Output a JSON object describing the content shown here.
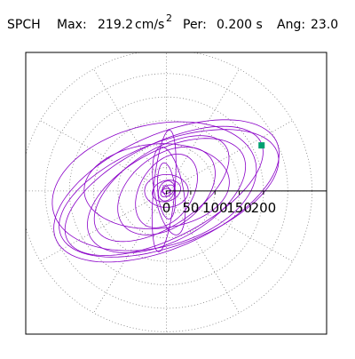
{
  "header": {
    "station": "SPCH",
    "max_label": "Max:",
    "max_value": "219.2",
    "max_unit_base": "cm/s",
    "max_unit_exp": "2",
    "per_label": "Per:",
    "per_value": "0.200 s",
    "ang_label": "Ang:",
    "ang_value": "23.0"
  },
  "colors": {
    "trace": "#8a00c8",
    "marker": "#00a070",
    "grid": "#808080",
    "axis": "#000000",
    "frame": "#000000"
  },
  "chart_data": {
    "type": "scatter",
    "title": "",
    "xlabel": "",
    "ylabel": "",
    "units": "cm/s²",
    "xlim": [
      -290,
      330
    ],
    "ylim": [
      -305,
      295
    ],
    "grid": true,
    "grid_type": "polar",
    "grid_rings": [
      50,
      100,
      150,
      200,
      250,
      300
    ],
    "grid_spokes_deg": [
      0,
      30,
      60,
      90,
      120,
      150,
      180,
      210,
      240,
      270,
      300,
      330
    ],
    "tick_values": [
      0,
      50,
      100,
      150,
      200
    ],
    "tick_labels": [
      "0",
      "50",
      "100",
      "150",
      "200"
    ],
    "max_marker": {
      "x": 196,
      "y": 97
    },
    "series": [
      {
        "type": "ellipses",
        "ellipses": [
          {
            "a": 250,
            "b": 120,
            "angle": 25,
            "cx": 0,
            "cy": 0
          },
          {
            "a": 240,
            "b": 110,
            "angle": 22,
            "cx": 5,
            "cy": -5
          },
          {
            "a": 225,
            "b": 100,
            "angle": 28,
            "cx": -5,
            "cy": 0
          },
          {
            "a": 215,
            "b": 130,
            "angle": 15,
            "cx": -25,
            "cy": 10
          },
          {
            "a": 180,
            "b": 95,
            "angle": 30,
            "cx": 0,
            "cy": -10
          },
          {
            "a": 160,
            "b": 80,
            "angle": 35,
            "cx": -10,
            "cy": 5
          },
          {
            "a": 150,
            "b": 90,
            "angle": 5,
            "cx": -20,
            "cy": 10
          },
          {
            "a": 115,
            "b": 75,
            "angle": 40,
            "cx": 0,
            "cy": 0
          },
          {
            "a": 85,
            "b": 55,
            "angle": 60,
            "cx": 0,
            "cy": 0
          },
          {
            "a": 95,
            "b": 30,
            "angle": 100,
            "cx": 5,
            "cy": 0
          },
          {
            "a": 60,
            "b": 18,
            "angle": 95,
            "cx": 0,
            "cy": 0
          },
          {
            "a": 130,
            "b": 22,
            "angle": 85,
            "cx": -5,
            "cy": 0
          },
          {
            "a": 45,
            "b": 35,
            "angle": 0,
            "cx": 0,
            "cy": 0
          },
          {
            "a": 30,
            "b": 22,
            "angle": 20,
            "cx": 0,
            "cy": 0
          },
          {
            "a": 22,
            "b": 16,
            "angle": 70,
            "cx": 0,
            "cy": 0
          },
          {
            "a": 16,
            "b": 10,
            "angle": 40,
            "cx": 2,
            "cy": 0
          },
          {
            "a": 12,
            "b": 7,
            "angle": 110,
            "cx": 0,
            "cy": 0
          },
          {
            "a": 9,
            "b": 5,
            "angle": 10,
            "cx": 0,
            "cy": 0
          }
        ]
      }
    ]
  }
}
